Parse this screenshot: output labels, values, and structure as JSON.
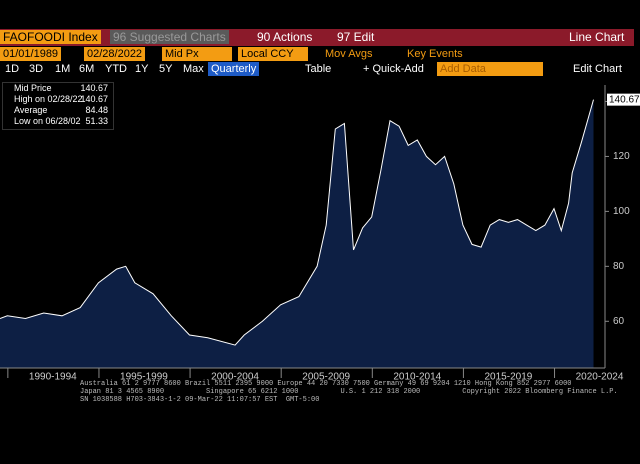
{
  "toolbar1": {
    "ticker": "FAOFOODI Index",
    "suggested": "96 Suggested Charts",
    "actions": "90 Actions",
    "edit": "97 Edit",
    "view": "Line Chart"
  },
  "toolbar2": {
    "start": "01/01/1989",
    "end": "02/28/2022",
    "field": "Mid Px",
    "currency": "Local CCY",
    "movavgs": "Mov Avgs",
    "events": "Key Events"
  },
  "toolbar3": {
    "ranges": [
      "1D",
      "3D",
      "1M",
      "6M",
      "YTD",
      "1Y",
      "5Y",
      "Max"
    ],
    "period": "Quarterly",
    "table": "Table",
    "quickadd": "+ Quick-Add",
    "adddata": "Add Data",
    "editchart": "Edit Chart"
  },
  "legend": {
    "rows": [
      [
        "Mid Price",
        "140.67"
      ],
      [
        "High on 02/28/22",
        "140.67"
      ],
      [
        "Average",
        "84.48"
      ],
      [
        "Low on 06/28/02",
        "51.33"
      ]
    ]
  },
  "footer": [
    "Australia 61 2 9777 8600 Brazil 5511 2395 9000 Europe 44 20 7330 7500 Germany 49 69 9204 1210 Hong Kong 852 2977 6000",
    "Japan 81 3 4565 8900          Singapore 65 6212 1000          U.S. 1 212 318 2000          Copyright 2022 Bloomberg Finance L.P.",
    "SN 1038588 H703-3843-1-2 09-Mar-22 11:07:57 EST  GMT-5:00"
  ],
  "chart_data": {
    "type": "area",
    "color": "#0d1f44",
    "line_color": "#ffffff",
    "x": [
      1989.6,
      1990,
      1991,
      1992,
      1993,
      1994,
      1995,
      1996,
      1996.5,
      1997,
      1998,
      1999,
      2000,
      2001,
      2002.5,
      2003,
      2004,
      2005,
      2006,
      2007,
      2007.5,
      2008,
      2008.5,
      2009,
      2009.5,
      2010,
      2010.5,
      2011,
      2011.5,
      2012,
      2012.5,
      2013,
      2013.5,
      2014,
      2014.5,
      2015,
      2015.5,
      2016,
      2016.5,
      2017,
      2017.5,
      2018,
      2018.5,
      2019,
      2019.5,
      2020,
      2020.4,
      2020.8,
      2021,
      2021.5,
      2022.17
    ],
    "values": [
      61,
      62,
      61,
      63,
      62,
      65,
      74,
      79,
      80,
      74,
      70,
      62,
      55,
      54,
      51.33,
      55,
      60,
      66,
      69,
      80,
      95,
      130,
      132,
      86,
      94,
      98,
      115,
      133,
      131,
      124,
      126,
      120,
      117,
      120,
      110,
      95,
      88,
      87,
      95,
      97,
      96,
      97,
      95,
      93,
      95,
      101,
      93,
      103,
      114,
      125,
      140.67
    ],
    "last_label": "140.67",
    "xlim": [
      1989.6,
      2022.8
    ],
    "ylim": [
      43,
      146
    ],
    "xticks": [
      {
        "value": 1992.5,
        "label": "1990-1994"
      },
      {
        "value": 1997.5,
        "label": "1995-1999"
      },
      {
        "value": 2002.5,
        "label": "2000-2004"
      },
      {
        "value": 2007.5,
        "label": "2005-2009"
      },
      {
        "value": 2012.5,
        "label": "2010-2014"
      },
      {
        "value": 2017.5,
        "label": "2015-2019"
      },
      {
        "value": 2022.5,
        "label": "2020-2024"
      }
    ],
    "yticks": [
      60,
      80,
      100,
      120,
      140
    ]
  }
}
